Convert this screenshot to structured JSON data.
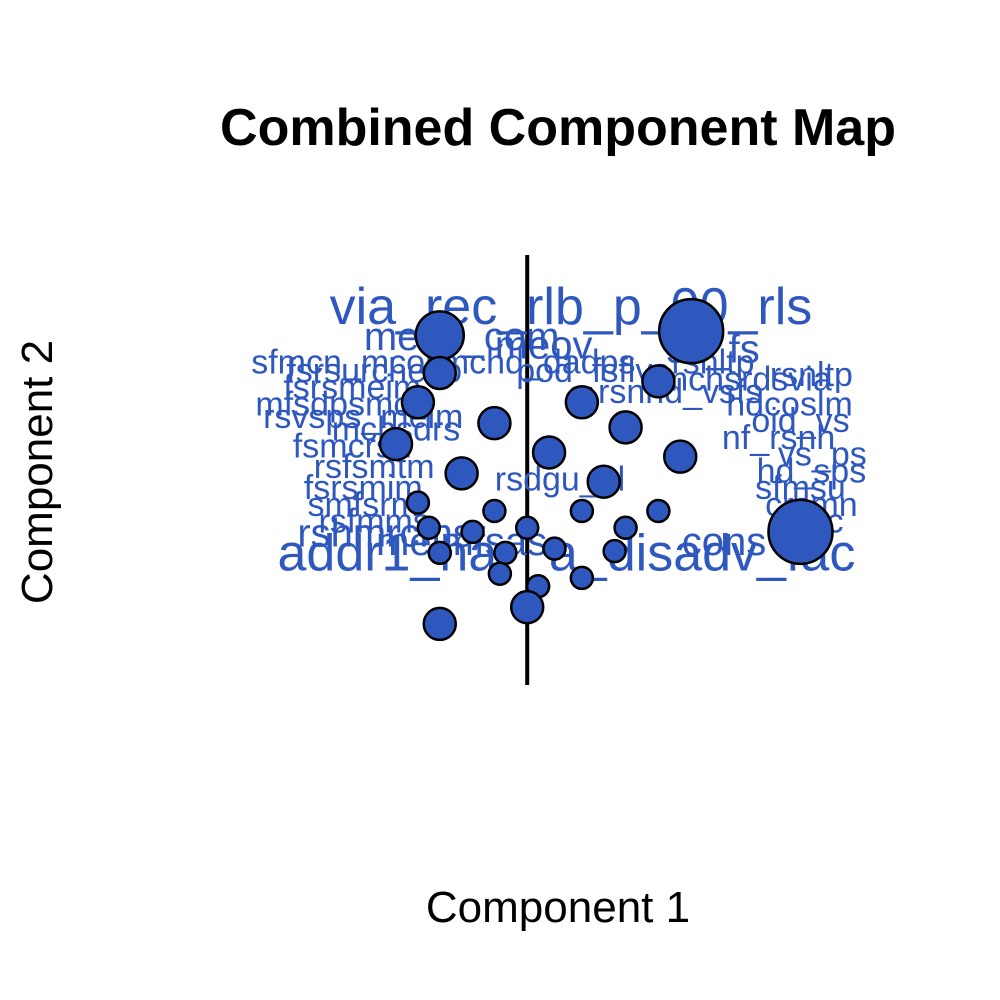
{
  "chart_data": {
    "type": "scatter",
    "title": "Combined Component Map",
    "xlabel": "Component 1",
    "ylabel": "Component 2",
    "xlim": [
      -2.6,
      3.2
    ],
    "ylim": [
      -3.0,
      2.5
    ],
    "grid": false,
    "legend": "none",
    "zero_line": "vertical at x = 0",
    "point_color": "#2f58bf",
    "label_color": "#2f58bf",
    "labels": [
      {
        "text": "via_rec_rlb_p_00_rls",
        "x": 0.4,
        "y": 1.6,
        "size": 3
      },
      {
        "text": "meim_com",
        "x": -0.6,
        "y": 1.25,
        "size": 2
      },
      {
        "text": "meov",
        "x": 0.15,
        "y": 1.15,
        "size": 2
      },
      {
        "text": "ss_fs",
        "x": 1.7,
        "y": 1.1,
        "size": 2
      },
      {
        "text": "sfmcn_mcom",
        "x": -1.6,
        "y": 0.95,
        "size": 1
      },
      {
        "text": "mchd_dadps",
        "x": 0.1,
        "y": 0.95,
        "size": 1
      },
      {
        "text": "rsnltp",
        "x": 1.7,
        "y": 0.95,
        "size": 1
      },
      {
        "text": "fsrsurcheco",
        "x": -1.4,
        "y": 0.85,
        "size": 1
      },
      {
        "text": "pod_fsflvs",
        "x": 0.6,
        "y": 0.85,
        "size": 1
      },
      {
        "text": "rsnltp",
        "x": 2.6,
        "y": 0.8,
        "size": 1
      },
      {
        "text": "mchsrdsvia",
        "x": 2.0,
        "y": 0.75,
        "size": 1
      },
      {
        "text": "fsrsmeim",
        "x": -1.6,
        "y": 0.65,
        "size": 1
      },
      {
        "text": "rsnhd_vsfs",
        "x": 1.4,
        "y": 0.6,
        "size": 1
      },
      {
        "text": "mfsdpsmcs",
        "x": -1.7,
        "y": 0.45,
        "size": 1
      },
      {
        "text": "hdcoslm",
        "x": 2.4,
        "y": 0.45,
        "size": 1
      },
      {
        "text": "rsvsps_meim",
        "x": -1.5,
        "y": 0.3,
        "size": 1
      },
      {
        "text": "oid_vs",
        "x": 2.5,
        "y": 0.25,
        "size": 1
      },
      {
        "text": "mchsdrs",
        "x": -1.2,
        "y": 0.15,
        "size": 1
      },
      {
        "text": "nf_rsnh",
        "x": 2.3,
        "y": 0.05,
        "size": 1
      },
      {
        "text": "fsmcrsh",
        "x": -1.6,
        "y": -0.05,
        "size": 1
      },
      {
        "text": "vs_ps",
        "x": 2.7,
        "y": -0.15,
        "size": 1
      },
      {
        "text": "rsfsmtm",
        "x": -1.4,
        "y": -0.3,
        "size": 1
      },
      {
        "text": "hd_sps",
        "x": 2.6,
        "y": -0.35,
        "size": 1
      },
      {
        "text": "rsdgu_pl",
        "x": 0.3,
        "y": -0.45,
        "size": 1
      },
      {
        "text": "fsrsmim",
        "x": -1.5,
        "y": -0.55,
        "size": 1
      },
      {
        "text": "sfmsu",
        "x": 2.5,
        "y": -0.55,
        "size": 1
      },
      {
        "text": "smfsrm",
        "x": -1.5,
        "y": -0.75,
        "size": 1
      },
      {
        "text": "crsmn",
        "x": 2.6,
        "y": -0.75,
        "size": 1
      },
      {
        "text": "rsfmms",
        "x": -1.4,
        "y": -0.95,
        "size": 1
      },
      {
        "text": "rsgc",
        "x": 2.6,
        "y": -0.95,
        "size": 1
      },
      {
        "text": "rshmrcms",
        "x": -1.3,
        "y": -1.1,
        "size": 2
      },
      {
        "text": "meimfsas",
        "x": -0.6,
        "y": -1.2,
        "size": 2
      },
      {
        "text": "cons",
        "x": 1.8,
        "y": -1.2,
        "size": 2
      },
      {
        "text": "addr1_nar",
        "x": -1.2,
        "y": -1.35,
        "size": 3
      },
      {
        "text": "a_disadv_fac",
        "x": 1.6,
        "y": -1.35,
        "size": 3
      }
    ],
    "points": [
      {
        "x": -0.8,
        "y": 1.3,
        "r": 2
      },
      {
        "x": 1.5,
        "y": 1.35,
        "r": 3
      },
      {
        "x": -0.8,
        "y": 0.85,
        "r": 1
      },
      {
        "x": 1.2,
        "y": 0.75,
        "r": 1
      },
      {
        "x": -1.0,
        "y": 0.5,
        "r": 1
      },
      {
        "x": 0.5,
        "y": 0.5,
        "r": 1
      },
      {
        "x": -0.3,
        "y": 0.25,
        "r": 1
      },
      {
        "x": 0.9,
        "y": 0.2,
        "r": 1
      },
      {
        "x": -1.2,
        "y": 0.0,
        "r": 1
      },
      {
        "x": 0.2,
        "y": -0.1,
        "r": 1
      },
      {
        "x": 1.4,
        "y": -0.15,
        "r": 1
      },
      {
        "x": -0.6,
        "y": -0.35,
        "r": 1
      },
      {
        "x": 0.7,
        "y": -0.45,
        "r": 1
      },
      {
        "x": -1.0,
        "y": -0.7,
        "r": 0
      },
      {
        "x": -0.3,
        "y": -0.8,
        "r": 0
      },
      {
        "x": 0.5,
        "y": -0.8,
        "r": 0
      },
      {
        "x": 1.2,
        "y": -0.8,
        "r": 0
      },
      {
        "x": -0.9,
        "y": -1.0,
        "r": 0
      },
      {
        "x": -0.5,
        "y": -1.05,
        "r": 0
      },
      {
        "x": 0.0,
        "y": -1.0,
        "r": 0
      },
      {
        "x": 0.9,
        "y": -1.0,
        "r": 0
      },
      {
        "x": 2.5,
        "y": -1.05,
        "r": 3
      },
      {
        "x": -0.8,
        "y": -1.3,
        "r": 0
      },
      {
        "x": -0.2,
        "y": -1.3,
        "r": 0
      },
      {
        "x": 0.25,
        "y": -1.25,
        "r": 0
      },
      {
        "x": 0.8,
        "y": -1.28,
        "r": 0
      },
      {
        "x": -0.25,
        "y": -1.55,
        "r": 0
      },
      {
        "x": 0.1,
        "y": -1.7,
        "r": 0
      },
      {
        "x": 0.5,
        "y": -1.6,
        "r": 0
      },
      {
        "x": 0.0,
        "y": -1.95,
        "r": 1
      },
      {
        "x": -0.8,
        "y": -2.15,
        "r": 1
      }
    ]
  }
}
